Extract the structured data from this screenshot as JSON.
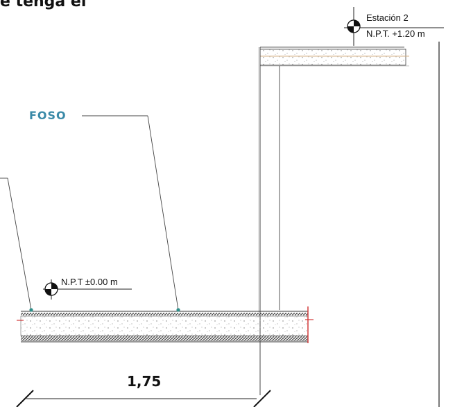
{
  "heading_fragment": "e tenga el",
  "station": {
    "name": "Estación 2",
    "level": "N.P.T. +1.20 m"
  },
  "floor_level": "N.P.T ±0.00 m",
  "foso_label": "FOSO",
  "dimension": "1,75",
  "colors": {
    "foso_label": "#3a8aa8",
    "leader_dot": "#2f8f8a",
    "red_mark": "#d23a3a",
    "line": "#222222"
  }
}
